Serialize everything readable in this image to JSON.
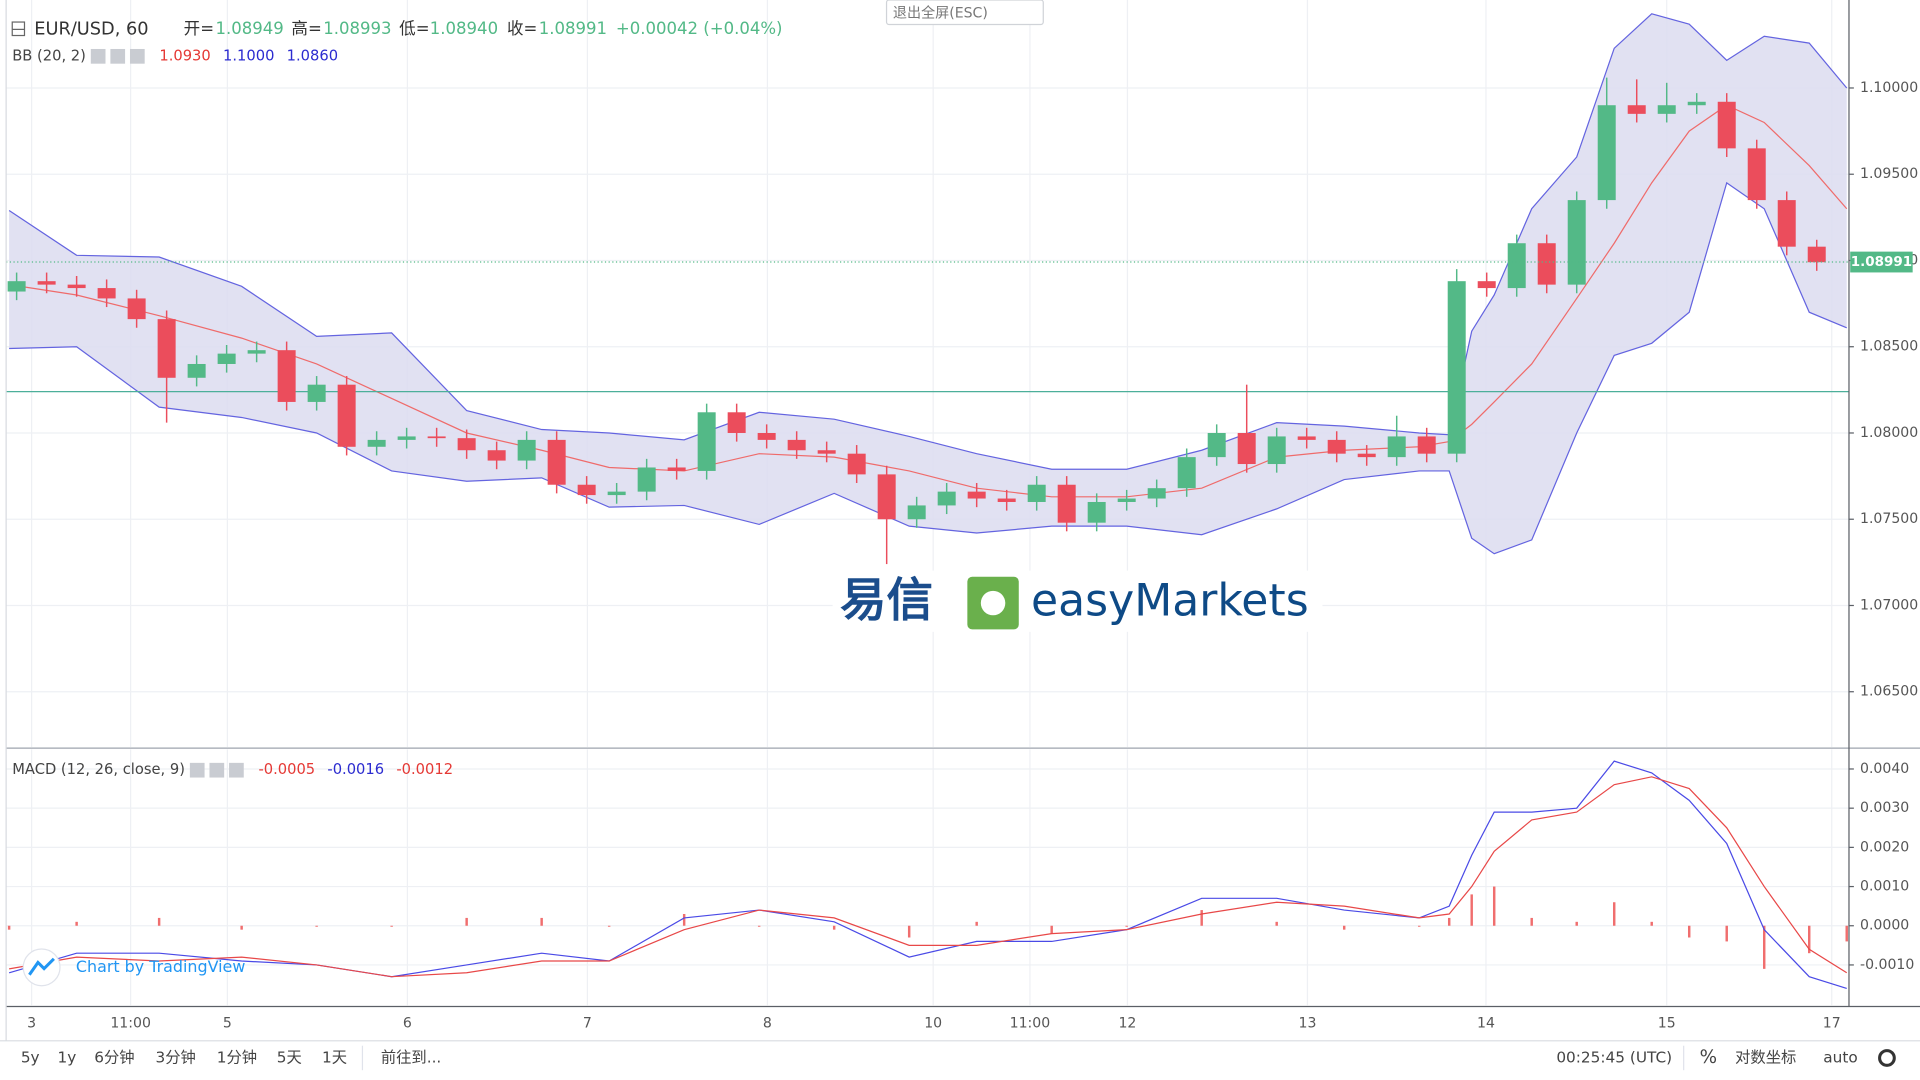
{
  "header": {
    "symbol": "EUR/USD, 60",
    "open_label": "开=",
    "open": "1.08949",
    "high_label": "高=",
    "high": "1.08993",
    "low_label": "低=",
    "low": "1.08940",
    "close_label": "收=",
    "close": "1.08991",
    "change": "+0.00042 (+0.04%)"
  },
  "exit_button": "退出全屏(ESC)",
  "watermark": {
    "cn": "易信",
    "en": "easyMarkets"
  },
  "credit": "Chart by TradingView",
  "toolbar": {
    "ranges": [
      "5y",
      "1y",
      "6分钟",
      "3分钟",
      "1分钟",
      "5天",
      "1天"
    ],
    "goto": "前往到...",
    "time": "00:25:45 (UTC)",
    "percent": "%",
    "log": "对数坐标",
    "auto": "auto"
  },
  "chart_data": [
    {
      "type": "candlestick",
      "indicator": {
        "name": "BB (20, 2)",
        "values": [
          {
            "text": "1.0930",
            "color": "#e53935"
          },
          {
            "text": "1.1000",
            "color": "#2c2cd0"
          },
          {
            "text": "1.0860",
            "color": "#2c2cd0"
          }
        ]
      },
      "up_color": "#53b987",
      "down_color": "#eb4d5c",
      "x": [
        -2,
        2,
        6,
        10,
        14,
        18,
        22,
        26,
        30,
        34,
        38,
        42,
        46,
        50,
        54,
        58,
        62,
        66,
        70,
        74,
        78,
        82,
        86,
        90,
        94,
        98,
        102,
        106,
        110,
        114,
        118,
        122,
        126,
        130,
        134,
        138,
        142,
        146,
        150,
        154,
        158,
        162,
        166,
        170,
        174,
        178,
        182,
        186,
        190,
        194,
        198,
        202,
        206,
        210,
        214,
        218,
        222,
        226,
        230,
        234,
        238
      ],
      "open": [
        1.0882,
        1.0888,
        1.0886,
        1.0884,
        1.0878,
        1.0866,
        1.0832,
        1.084,
        1.0846,
        1.0848,
        1.0818,
        1.0828,
        1.0792,
        1.0796,
        1.0798,
        1.0797,
        1.079,
        1.0784,
        1.0796,
        1.077,
        1.0764,
        1.0766,
        1.078,
        1.0778,
        1.0812,
        1.08,
        1.0796,
        1.079,
        1.0788,
        1.0776,
        1.075,
        1.0758,
        1.0766,
        1.0762,
        1.076,
        1.077,
        1.0748,
        1.076,
        1.0762,
        1.0768,
        1.0786,
        1.08,
        1.0782,
        1.0798,
        1.0796,
        1.0788,
        1.0786,
        1.0798,
        1.0788,
        1.0888,
        1.0884,
        1.091,
        1.0886,
        1.0935,
        1.099,
        1.0985,
        1.099,
        1.0992,
        1.0965,
        1.0935,
        1.0908
      ],
      "high": [
        1.0893,
        1.0893,
        1.0891,
        1.0889,
        1.0883,
        1.0871,
        1.0845,
        1.0851,
        1.0853,
        1.0853,
        1.0833,
        1.0833,
        1.0801,
        1.0803,
        1.0803,
        1.0802,
        1.0795,
        1.0801,
        1.0801,
        1.0775,
        1.0771,
        1.0785,
        1.0785,
        1.0817,
        1.0817,
        1.0805,
        1.0801,
        1.0795,
        1.0793,
        1.0781,
        1.0763,
        1.0771,
        1.0771,
        1.0767,
        1.0775,
        1.0775,
        1.0765,
        1.0767,
        1.0773,
        1.0791,
        1.0805,
        1.0828,
        1.0803,
        1.0803,
        1.0801,
        1.0793,
        1.081,
        1.0803,
        1.0895,
        1.0893,
        1.0915,
        1.0915,
        1.094,
        1.1006,
        1.1005,
        1.1003,
        1.0997,
        1.0997,
        1.097,
        1.094,
        1.0912
      ],
      "low": [
        1.0877,
        1.0881,
        1.0879,
        1.0873,
        1.0861,
        1.0806,
        1.0827,
        1.0835,
        1.0841,
        1.0813,
        1.0813,
        1.0787,
        1.0787,
        1.0791,
        1.0792,
        1.0785,
        1.0779,
        1.0779,
        1.0765,
        1.0759,
        1.0759,
        1.0761,
        1.0773,
        1.0773,
        1.0795,
        1.0791,
        1.0785,
        1.0783,
        1.0771,
        1.0724,
        1.0745,
        1.0753,
        1.0757,
        1.0755,
        1.0755,
        1.0743,
        1.0743,
        1.0755,
        1.0757,
        1.0763,
        1.0781,
        1.0777,
        1.0777,
        1.0791,
        1.0783,
        1.0781,
        1.0781,
        1.0783,
        1.0783,
        1.0879,
        1.0879,
        1.0881,
        1.0881,
        1.093,
        1.098,
        1.098,
        1.0985,
        1.096,
        1.093,
        1.0903,
        1.0894
      ],
      "close": [
        1.0888,
        1.0886,
        1.0884,
        1.0878,
        1.0866,
        1.0832,
        1.084,
        1.0846,
        1.0848,
        1.0818,
        1.0828,
        1.0792,
        1.0796,
        1.0798,
        1.0797,
        1.079,
        1.0784,
        1.0796,
        1.077,
        1.0764,
        1.0766,
        1.078,
        1.0778,
        1.0812,
        1.08,
        1.0796,
        1.079,
        1.0788,
        1.0776,
        1.075,
        1.0758,
        1.0766,
        1.0762,
        1.076,
        1.077,
        1.0748,
        1.076,
        1.0762,
        1.0768,
        1.0786,
        1.08,
        1.0782,
        1.0798,
        1.0796,
        1.0788,
        1.0786,
        1.0798,
        1.0788,
        1.0888,
        1.0884,
        1.091,
        1.0886,
        1.0935,
        1.099,
        1.0985,
        1.099,
        1.0992,
        1.0965,
        1.0935,
        1.0908,
        1.0899
      ],
      "bands": {
        "x": [
          -3,
          6,
          17,
          28,
          38,
          48,
          58,
          68,
          77,
          87,
          97,
          107,
          117,
          126,
          136,
          146,
          156,
          166,
          175,
          185,
          189,
          192,
          195,
          200,
          206,
          211,
          216,
          221,
          226,
          231,
          237,
          242
        ],
        "fill": "#dcdcf0",
        "series": [
          {
            "color": "#6464e0",
            "values": [
              1.0929,
              1.0903,
              1.0902,
              1.0885,
              1.0856,
              1.0858,
              1.0813,
              1.0802,
              1.08,
              1.0796,
              1.0812,
              1.0808,
              1.0798,
              1.0788,
              1.0779,
              1.0779,
              1.079,
              1.0806,
              1.0804,
              1.08,
              1.0799,
              1.0859,
              1.088,
              1.093,
              1.096,
              1.1023,
              1.1043,
              1.1037,
              1.1016,
              1.103,
              1.1026,
              1.1
            ]
          },
          {
            "color": "#ef6b6b",
            "values": [
              1.0886,
              1.088,
              1.0868,
              1.0855,
              1.084,
              1.082,
              1.08,
              1.079,
              1.078,
              1.0778,
              1.0788,
              1.0786,
              1.0778,
              1.0768,
              1.0763,
              1.0763,
              1.0768,
              1.0786,
              1.079,
              1.0792,
              1.0795,
              1.0805,
              1.0818,
              1.084,
              1.0878,
              1.091,
              1.0945,
              1.0975,
              1.099,
              1.098,
              1.0955,
              1.093
            ]
          },
          {
            "color": "#6464e0",
            "values": [
              1.0849,
              1.085,
              1.0815,
              1.0809,
              1.08,
              1.0778,
              1.0772,
              1.0774,
              1.0757,
              1.0758,
              1.0747,
              1.0765,
              1.0746,
              1.0742,
              1.0746,
              1.0746,
              1.0741,
              1.0756,
              1.0773,
              1.0778,
              1.0778,
              1.0739,
              1.073,
              1.0738,
              1.08,
              1.0845,
              1.0852,
              1.087,
              1.0945,
              1.093,
              1.087,
              1.0861
            ]
          }
        ]
      },
      "horizontal_line": {
        "value": 1.0824,
        "color": "#4caf9a"
      },
      "last_price": {
        "value": 1.08991,
        "label": "1.08991",
        "color": "#53b987"
      },
      "xlim": [
        -3.4,
        242.3
      ],
      "ylim": [
        1.0618,
        1.1051
      ],
      "yticks": [
        {
          "value": 1.065,
          "label": "1.06500"
        },
        {
          "value": 1.07,
          "label": "1.07000"
        },
        {
          "value": 1.075,
          "label": "1.07500"
        },
        {
          "value": 1.08,
          "label": "1.08000"
        },
        {
          "value": 1.085,
          "label": "1.08500"
        },
        {
          "value": 1.09,
          "label": "1.09000"
        },
        {
          "value": 1.095,
          "label": "1.09500"
        },
        {
          "value": 1.1,
          "label": "1.10000"
        }
      ],
      "grid": true
    },
    {
      "type": "macd",
      "indicator": {
        "name": "MACD (12, 26, close, 9)",
        "values": [
          {
            "text": "-0.0005",
            "color": "#e53935"
          },
          {
            "text": "-0.0016",
            "color": "#2c2cd0"
          },
          {
            "text": "-0.0012",
            "color": "#e53935"
          }
        ]
      },
      "x": [
        -3,
        6,
        17,
        28,
        38,
        48,
        58,
        68,
        77,
        87,
        97,
        107,
        117,
        126,
        136,
        146,
        156,
        166,
        175,
        185,
        189,
        192,
        195,
        200,
        206,
        211,
        216,
        221,
        226,
        231,
        237,
        242
      ],
      "histogram": {
        "color": "#f06e6e",
        "values": [
          -0.0001,
          0.0001,
          0.0002,
          -0.0001,
          0,
          0,
          0.0002,
          0.0002,
          0,
          0.0003,
          0,
          -0.0001,
          -0.0003,
          0.0001,
          -0.0002,
          0,
          0.0004,
          0.0001,
          -0.0001,
          0,
          0.0002,
          0.0008,
          0.001,
          0.0002,
          0.0001,
          0.0006,
          0.0001,
          -0.0003,
          -0.0004,
          -0.0011,
          -0.0007,
          -0.0004
        ]
      },
      "series": [
        {
          "color": "#4a4ae6",
          "values": [
            -0.0012,
            -0.0007,
            -0.0007,
            -0.0009,
            -0.001,
            -0.0013,
            -0.001,
            -0.0007,
            -0.0009,
            0.0002,
            0.0004,
            0.0001,
            -0.0008,
            -0.0004,
            -0.0004,
            -0.0001,
            0.0007,
            0.0007,
            0.0004,
            0.0002,
            0.0005,
            0.0018,
            0.0029,
            0.0029,
            0.003,
            0.0042,
            0.0039,
            0.0032,
            0.0021,
            -0.0001,
            -0.0013,
            -0.0016
          ]
        },
        {
          "color": "#e84848",
          "values": [
            -0.0011,
            -0.0008,
            -0.0009,
            -0.0008,
            -0.001,
            -0.0013,
            -0.0012,
            -0.0009,
            -0.0009,
            -0.0001,
            0.0004,
            0.0002,
            -0.0005,
            -0.0005,
            -0.0002,
            -0.0001,
            0.0003,
            0.0006,
            0.0005,
            0.0002,
            0.0003,
            0.001,
            0.0019,
            0.0027,
            0.0029,
            0.0036,
            0.0038,
            0.0035,
            0.0025,
            0.001,
            -0.0006,
            -0.0012
          ]
        }
      ],
      "xlim": [
        -3.4,
        242.3
      ],
      "xticks": [
        {
          "value": 0,
          "label": "3"
        },
        {
          "value": 13.2,
          "label": "11:00"
        },
        {
          "value": 26.1,
          "label": "5"
        },
        {
          "value": 50.1,
          "label": "6"
        },
        {
          "value": 74.1,
          "label": "7"
        },
        {
          "value": 98.1,
          "label": "8"
        },
        {
          "value": 120.2,
          "label": "10"
        },
        {
          "value": 133.1,
          "label": "11:00"
        },
        {
          "value": 146.1,
          "label": "12"
        },
        {
          "value": 170.1,
          "label": "13"
        },
        {
          "value": 193.9,
          "label": "14"
        },
        {
          "value": 218,
          "label": "15"
        },
        {
          "value": 240,
          "label": "17"
        }
      ],
      "ylim": [
        -0.00203,
        0.0045
      ],
      "yticks": [
        {
          "value": -0.001,
          "label": "-0.0010"
        },
        {
          "value": 0,
          "label": "0.0000"
        },
        {
          "value": 0.001,
          "label": "0.0010"
        },
        {
          "value": 0.002,
          "label": "0.0020"
        },
        {
          "value": 0.003,
          "label": "0.0030"
        },
        {
          "value": 0.004,
          "label": "0.0040"
        }
      ],
      "grid": true
    }
  ]
}
